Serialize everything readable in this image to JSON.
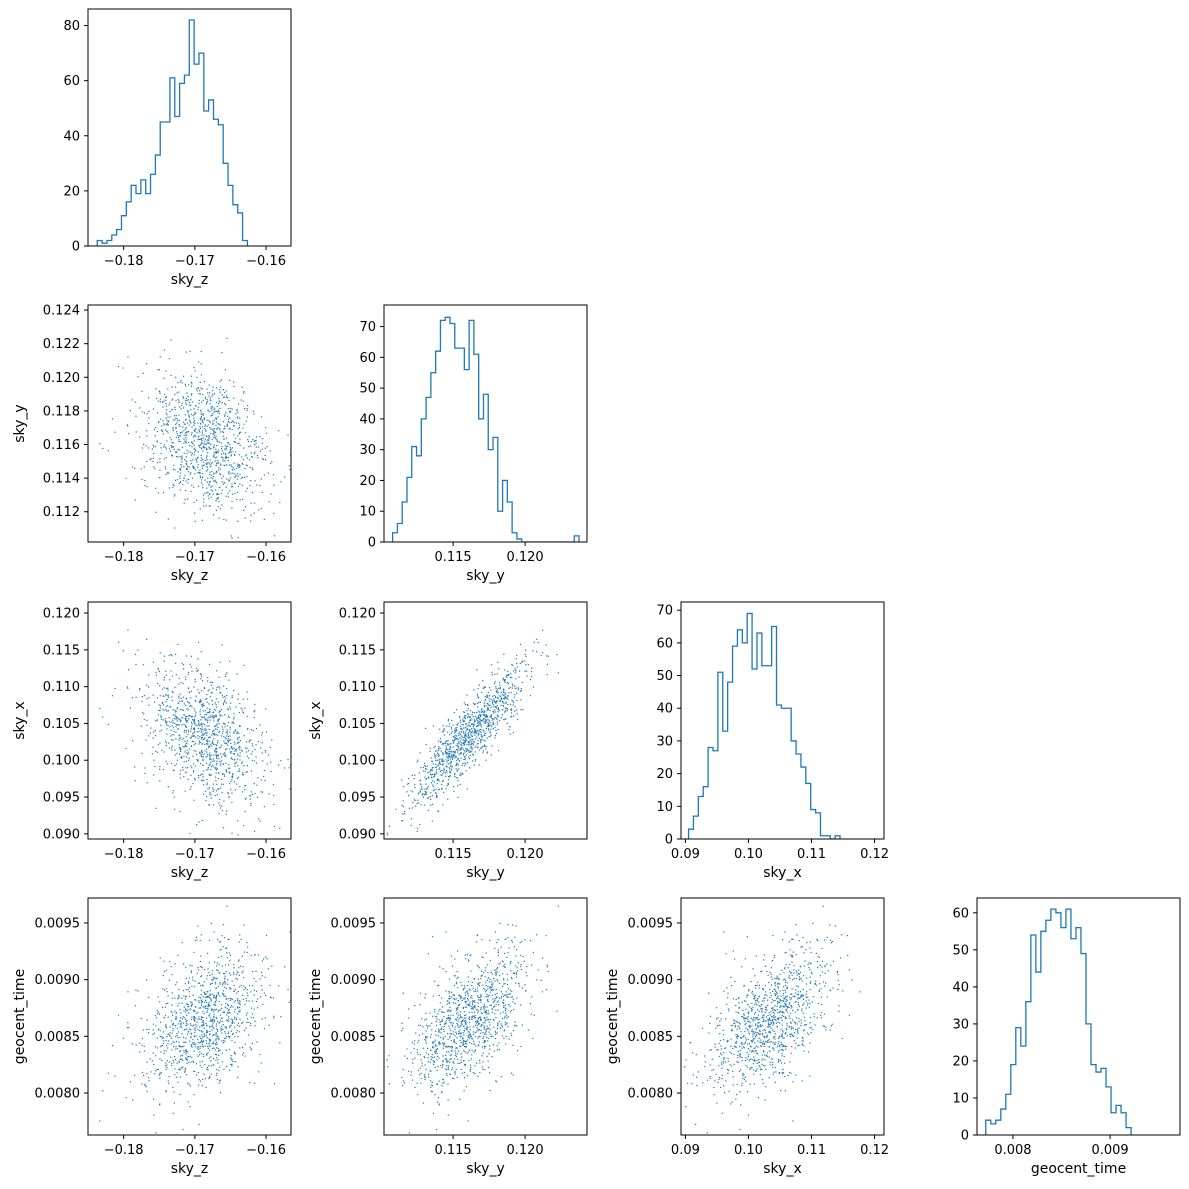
{
  "colors": {
    "series": "#1f77b4",
    "axis": "#000000",
    "background": "#ffffff"
  },
  "chart_data": {
    "type": "corner",
    "grid": false,
    "parameters": [
      "sky_z",
      "sky_y",
      "sky_x",
      "geocent_time"
    ],
    "axes": {
      "sky_z": {
        "label": "sky_z",
        "lim": [
          -0.185,
          -0.1565
        ],
        "ticks": [
          -0.18,
          -0.17,
          -0.16
        ],
        "tick_labels": [
          "−0.18",
          "−0.17",
          "−0.16"
        ]
      },
      "sky_y": {
        "label": "sky_y",
        "lim": [
          0.1102,
          0.1243
        ],
        "ticks": [
          0.115,
          0.12
        ],
        "tick_labels": [
          "0.115",
          "0.120"
        ],
        "yticks": [
          0.112,
          0.114,
          0.116,
          0.118,
          0.12,
          0.122,
          0.124
        ],
        "ytick_labels": [
          "0.112",
          "0.114",
          "0.116",
          "0.118",
          "0.120",
          "0.122",
          "0.124"
        ]
      },
      "sky_x": {
        "label": "sky_x",
        "lim": [
          0.0893,
          0.1215
        ],
        "ticks": [
          0.09,
          0.1,
          0.11,
          0.12
        ],
        "tick_labels": [
          "0.09",
          "0.10",
          "0.11",
          "0.12"
        ],
        "yticks": [
          0.09,
          0.095,
          0.1,
          0.105,
          0.11,
          0.115,
          0.12
        ],
        "ytick_labels": [
          "0.090",
          "0.095",
          "0.100",
          "0.105",
          "0.110",
          "0.115",
          "0.120"
        ]
      },
      "geocent_time": {
        "label": "geocent_time",
        "lim": [
          0.00763,
          0.00972
        ],
        "ticks": [
          0.008,
          0.009
        ],
        "tick_labels": [
          "0.008",
          "0.009"
        ],
        "yticks": [
          0.008,
          0.0085,
          0.009,
          0.0095
        ],
        "ytick_labels": [
          "0.0080",
          "0.0085",
          "0.0090",
          "0.0095"
        ]
      }
    },
    "histograms": [
      {
        "param": "sky_z",
        "type": "step",
        "x_start": -0.1837,
        "bin_width": 0.00068,
        "counts": [
          2,
          1,
          2,
          4,
          6,
          11,
          16,
          22,
          19,
          24,
          19,
          26,
          33,
          45,
          45,
          61,
          47,
          59,
          62,
          82,
          66,
          70,
          49,
          53,
          46,
          44,
          30,
          22,
          15,
          12,
          2
        ],
        "ylim": [
          0,
          86
        ],
        "yticks": [
          0,
          20,
          40,
          60,
          80
        ],
        "ytick_labels": [
          "0",
          "20",
          "40",
          "60",
          "80"
        ]
      },
      {
        "param": "sky_y",
        "type": "step",
        "x_start": 0.1108,
        "bin_width": 0.000332,
        "counts": [
          3,
          6,
          13,
          21,
          31,
          28,
          40,
          47,
          55,
          62,
          72,
          73,
          71,
          63,
          63,
          56,
          72,
          61,
          40,
          48,
          30,
          34,
          10,
          20,
          13,
          3,
          1,
          0,
          0,
          0,
          0,
          0,
          0,
          0,
          0,
          0,
          0,
          0,
          2
        ],
        "ylim": [
          0,
          77
        ],
        "yticks": [
          0,
          10,
          20,
          30,
          40,
          50,
          60,
          70
        ],
        "ytick_labels": [
          "0",
          "10",
          "20",
          "30",
          "40",
          "50",
          "60",
          "70"
        ]
      },
      {
        "param": "sky_x",
        "type": "step",
        "x_start": 0.0905,
        "bin_width": 0.000775,
        "counts": [
          3,
          7,
          13,
          16,
          28,
          27,
          51,
          33,
          48,
          59,
          64,
          60,
          69,
          52,
          63,
          53,
          53,
          65,
          41,
          40,
          40,
          30,
          26,
          22,
          17,
          9,
          8,
          1,
          1,
          0,
          1
        ],
        "ylim": [
          0,
          72.5
        ],
        "yticks": [
          0,
          10,
          20,
          30,
          40,
          50,
          60,
          70
        ],
        "ytick_labels": [
          "0",
          "10",
          "20",
          "30",
          "40",
          "50",
          "60",
          "70"
        ]
      },
      {
        "param": "geocent_time",
        "type": "step",
        "x_start": 0.00772,
        "bin_width": 5.16e-05,
        "counts": [
          4,
          3,
          4,
          7,
          11,
          19,
          29,
          24,
          36,
          54,
          44,
          55,
          58,
          61,
          60,
          56,
          61,
          53,
          56,
          49,
          30,
          19,
          17,
          18,
          13,
          6,
          8,
          6,
          2
        ],
        "ylim": [
          0,
          64
        ],
        "yticks": [
          0,
          10,
          20,
          30,
          40,
          50,
          60
        ],
        "ytick_labels": [
          "0",
          "10",
          "20",
          "30",
          "40",
          "50",
          "60"
        ]
      }
    ],
    "samples": {
      "n": 1100,
      "means": {
        "sky_z": -0.1685,
        "sky_y": 0.1161,
        "sky_x": 0.1033,
        "geocent_time": 0.00864
      },
      "stds": {
        "sky_z": 0.0045,
        "sky_y": 0.00205,
        "sky_x": 0.0048,
        "geocent_time": 0.00032
      },
      "correlations": {
        "sky_y|sky_z": -0.25,
        "sky_x|sky_z": -0.42,
        "sky_x|sky_y": 0.87,
        "geocent_time|sky_z": 0.38,
        "geocent_time|sky_y": 0.55,
        "geocent_time|sky_x": 0.5
      }
    }
  }
}
